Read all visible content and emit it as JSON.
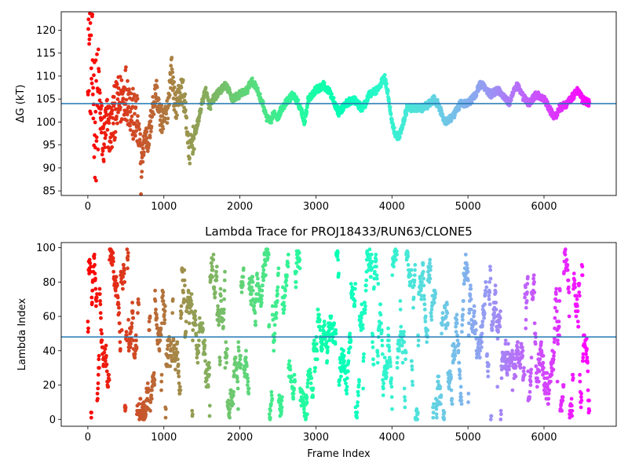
{
  "chart_data": [
    {
      "type": "scatter",
      "title": "",
      "xlabel": "",
      "ylabel": "ΔG (kT)",
      "xlim": [
        -350,
        6950
      ],
      "ylim": [
        84,
        124
      ],
      "xticks": [
        0,
        1000,
        2000,
        3000,
        4000,
        5000,
        6000
      ],
      "yticks": [
        85,
        90,
        95,
        100,
        105,
        110,
        115,
        120
      ],
      "hline": 104,
      "colormap": "rainbow",
      "points_per_series": 6600,
      "series": [
        {
          "values_trace": [
            [
              0,
              120
            ],
            [
              50,
              112
            ],
            [
              100,
              100
            ],
            [
              150,
              105
            ],
            [
              200,
              95
            ],
            [
              250,
              100
            ],
            [
              300,
              98
            ],
            [
              350,
              102
            ],
            [
              400,
              104
            ],
            [
              450,
              105
            ],
            [
              500,
              107
            ],
            [
              550,
              104
            ],
            [
              600,
              101
            ],
            [
              650,
              100
            ],
            [
              700,
              90
            ],
            [
              750,
              97
            ],
            [
              800,
              96
            ],
            [
              850,
              103
            ],
            [
              900,
              107
            ],
            [
              950,
              101
            ],
            [
              1000,
              100
            ],
            [
              1050,
              103
            ],
            [
              1100,
              112
            ],
            [
              1150,
              103
            ],
            [
              1200,
              106
            ],
            [
              1250,
              107
            ],
            [
              1300,
              100
            ],
            [
              1330,
              93
            ],
            [
              1400,
              97
            ],
            [
              1450,
              100
            ],
            [
              1500,
              104
            ],
            [
              1550,
              107
            ],
            [
              1600,
              103
            ],
            [
              1650,
              105
            ],
            [
              1700,
              106
            ],
            [
              1800,
              108
            ],
            [
              1850,
              107
            ],
            [
              1900,
              105
            ],
            [
              2000,
              106
            ],
            [
              2100,
              107
            ],
            [
              2150,
              109
            ],
            [
              2200,
              108
            ],
            [
              2300,
              104
            ],
            [
              2350,
              101
            ],
            [
              2400,
              100
            ],
            [
              2450,
              102
            ],
            [
              2500,
              101
            ],
            [
              2550,
              103
            ],
            [
              2600,
              104
            ],
            [
              2700,
              106
            ],
            [
              2800,
              103
            ],
            [
              2850,
              100
            ],
            [
              2900,
              105
            ],
            [
              3000,
              107
            ],
            [
              3100,
              108
            ],
            [
              3200,
              106
            ],
            [
              3250,
              104
            ],
            [
              3300,
              102
            ],
            [
              3400,
              104
            ],
            [
              3500,
              105
            ],
            [
              3600,
              103
            ],
            [
              3650,
              104
            ],
            [
              3700,
              106
            ],
            [
              3800,
              107
            ],
            [
              3850,
              108
            ],
            [
              3900,
              110
            ],
            [
              3950,
              106
            ],
            [
              4000,
              100
            ],
            [
              4050,
              97
            ],
            [
              4100,
              97
            ],
            [
              4150,
              100
            ],
            [
              4200,
              103
            ],
            [
              4300,
              103
            ],
            [
              4400,
              103
            ],
            [
              4500,
              104
            ],
            [
              4550,
              105
            ],
            [
              4600,
              104
            ],
            [
              4650,
              102
            ],
            [
              4700,
              100
            ],
            [
              4800,
              101
            ],
            [
              4900,
              104
            ],
            [
              5000,
              104
            ],
            [
              5100,
              106
            ],
            [
              5150,
              108
            ],
            [
              5200,
              108
            ],
            [
              5300,
              106
            ],
            [
              5400,
              107
            ],
            [
              5500,
              105
            ],
            [
              5550,
              104
            ],
            [
              5600,
              107
            ],
            [
              5650,
              108
            ],
            [
              5700,
              106
            ],
            [
              5800,
              104
            ],
            [
              5900,
              106
            ],
            [
              6000,
              105
            ],
            [
              6100,
              102
            ],
            [
              6150,
              101
            ],
            [
              6200,
              103
            ],
            [
              6300,
              104
            ],
            [
              6400,
              106
            ],
            [
              6450,
              107
            ],
            [
              6500,
              105
            ],
            [
              6600,
              104
            ]
          ]
        }
      ]
    },
    {
      "type": "scatter",
      "title": "Lambda Trace for PROJ18433/RUN63/CLONE5",
      "xlabel": "Frame Index",
      "ylabel": "Lambda Index",
      "xlim": [
        -350,
        6950
      ],
      "ylim": [
        -4,
        103
      ],
      "xticks": [
        0,
        1000,
        2000,
        3000,
        4000,
        5000,
        6000
      ],
      "yticks": [
        0,
        20,
        40,
        60,
        80,
        100
      ],
      "hline": 48,
      "colormap": "rainbow",
      "value_range": [
        0,
        99
      ],
      "points_per_series": 6600
    }
  ]
}
